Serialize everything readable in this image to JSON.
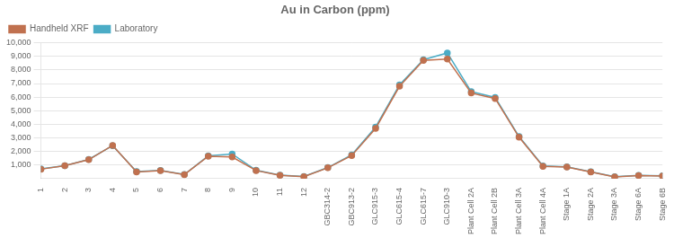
{
  "chart_data": {
    "type": "line",
    "title": "Au in Carbon (ppm)",
    "categories": [
      "1",
      "2",
      "3",
      "4",
      "5",
      "6",
      "7",
      "8",
      "9",
      "10",
      "11",
      "12",
      "GBC314-2",
      "GBC913-2",
      "GLC915-3",
      "GLC615-4",
      "GLC615-7",
      "GLC910-3",
      "Plant Cell 2A",
      "Plant Cell 2B",
      "Plant Cell 3A",
      "Plant Cell 4A",
      "Stage 1A",
      "Stage 2A",
      "Stage 3A",
      "Stage 6A",
      "Stage 6B"
    ],
    "series": [
      {
        "name": "Handheld XRF",
        "color": "#C0714F",
        "marker": "circle",
        "values": [
          700,
          950,
          1400,
          2450,
          500,
          600,
          300,
          1650,
          1600,
          600,
          250,
          150,
          800,
          1700,
          3700,
          6800,
          8700,
          8800,
          6300,
          5900,
          3050,
          900,
          850,
          500,
          130,
          230,
          200
        ]
      },
      {
        "name": "Laboratory",
        "color": "#4BACC6",
        "marker": "circle",
        "values": [
          730,
          960,
          1420,
          2430,
          520,
          610,
          310,
          1680,
          1820,
          620,
          260,
          160,
          820,
          1750,
          3800,
          6900,
          8750,
          9250,
          6400,
          5980,
          3100,
          940,
          870,
          510,
          140,
          240,
          210
        ]
      }
    ],
    "ylim": [
      0,
      10000
    ],
    "yticks": [
      {
        "value": 1000,
        "label": "1,000"
      },
      {
        "value": 2000,
        "label": "2,000"
      },
      {
        "value": 3000,
        "label": "3,000"
      },
      {
        "value": 4000,
        "label": "4,000"
      },
      {
        "value": 5000,
        "label": "5,000"
      },
      {
        "value": 6000,
        "label": "6,000"
      },
      {
        "value": 7000,
        "label": "7,000"
      },
      {
        "value": 8000,
        "label": "8,000"
      },
      {
        "value": 9000,
        "label": "9,000"
      },
      {
        "value": 10000,
        "label": "10,000"
      }
    ],
    "grid": true,
    "legend": "upper left"
  }
}
